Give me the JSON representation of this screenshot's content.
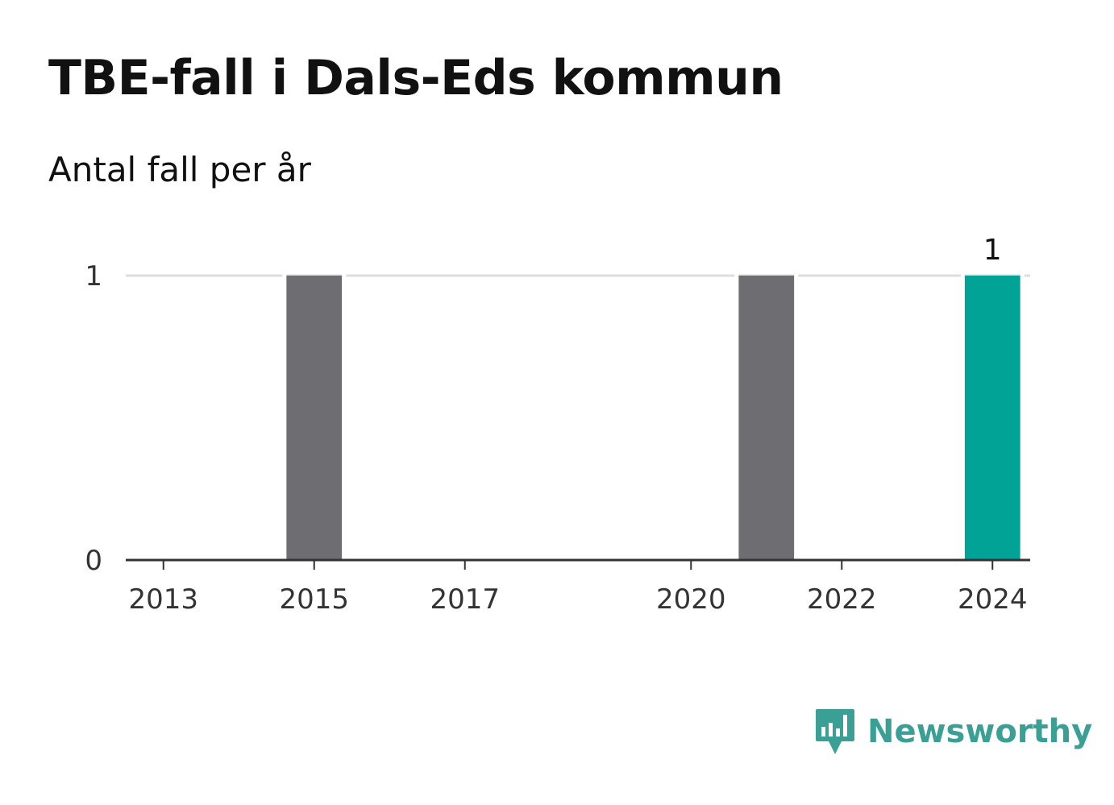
{
  "title": "TBE-fall i Dals-Eds kommun",
  "subtitle": "Antal fall per år",
  "brand": {
    "name": "Newsworthy",
    "color": "#3aa096",
    "icon": "newsworthy-logo-icon"
  },
  "colors": {
    "bar": "#6e6d72",
    "highlight": "#00a396",
    "grid": "#dddddd",
    "axis": "#333333"
  },
  "chart_data": {
    "type": "bar",
    "categories": [
      "2013",
      "2014",
      "2015",
      "2016",
      "2017",
      "2018",
      "2019",
      "2020",
      "2021",
      "2022",
      "2023",
      "2024"
    ],
    "values": [
      0,
      0,
      1,
      0,
      0,
      0,
      0,
      0,
      1,
      0,
      0,
      1
    ],
    "x_tick_labels": [
      "2013",
      "2015",
      "2017",
      "2020",
      "2022",
      "2024"
    ],
    "y_ticks": [
      0,
      1
    ],
    "ylim": [
      0,
      1
    ],
    "highlight_category": "2024",
    "data_labels": [
      {
        "category": "2024",
        "text": "1"
      }
    ],
    "grid": true,
    "legend": "none",
    "xlabel": "",
    "ylabel": ""
  }
}
